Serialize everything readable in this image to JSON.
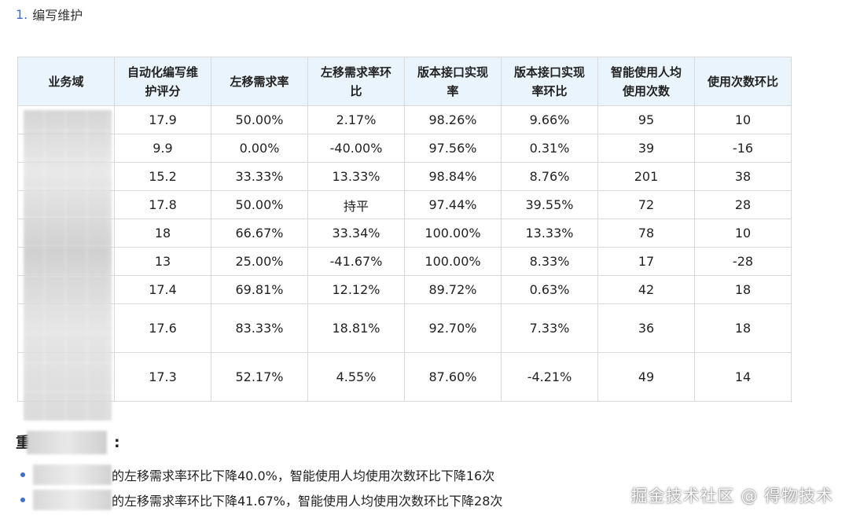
{
  "section": {
    "number": "1.",
    "title": "编写维护"
  },
  "table": {
    "headers": [
      "业务域",
      "自动化编写维护评分",
      "左移需求率",
      "左移需求率环比",
      "版本接口实现率",
      "版本接口实现率环比",
      "智能使用人均使用次数",
      "使用次数环比"
    ],
    "header_lines": [
      [
        "业务域"
      ],
      [
        "自动化编写维",
        "护评分"
      ],
      [
        "左移需求率"
      ],
      [
        "左移需求率环",
        "比"
      ],
      [
        "版本接口实现",
        "率"
      ],
      [
        "版本接口实现",
        "率环比"
      ],
      [
        "智能使用人均",
        "使用次数"
      ],
      [
        "使用次数环比"
      ]
    ],
    "rows": [
      {
        "domain": "",
        "score": "17.9",
        "shift_rate": "50.00%",
        "shift_mom": "2.17%",
        "shift_mom_sign": "pos",
        "impl_rate": "98.26%",
        "impl_mom": "9.66%",
        "impl_mom_sign": "pos",
        "avg_use": "95",
        "use_mom": "10",
        "use_mom_sign": "pos"
      },
      {
        "domain": "",
        "score": "9.9",
        "shift_rate": "0.00%",
        "shift_mom": "-40.00%",
        "shift_mom_sign": "neg",
        "impl_rate": "97.56%",
        "impl_mom": "0.31%",
        "impl_mom_sign": "pos",
        "avg_use": "39",
        "use_mom": "-16",
        "use_mom_sign": "neg"
      },
      {
        "domain": "",
        "score": "15.2",
        "shift_rate": "33.33%",
        "shift_mom": "13.33%",
        "shift_mom_sign": "pos",
        "impl_rate": "98.84%",
        "impl_mom": "8.76%",
        "impl_mom_sign": "pos",
        "avg_use": "201",
        "use_mom": "38",
        "use_mom_sign": "pos"
      },
      {
        "domain": "",
        "score": "17.8",
        "shift_rate": "50.00%",
        "shift_mom": "持平",
        "shift_mom_sign": "flat",
        "impl_rate": "97.44%",
        "impl_mom": "39.55%",
        "impl_mom_sign": "pos",
        "avg_use": "72",
        "use_mom": "28",
        "use_mom_sign": "pos"
      },
      {
        "domain": "",
        "score": "18",
        "shift_rate": "66.67%",
        "shift_mom": "33.34%",
        "shift_mom_sign": "pos",
        "impl_rate": "100.00%",
        "impl_mom": "13.33%",
        "impl_mom_sign": "pos",
        "avg_use": "78",
        "use_mom": "10",
        "use_mom_sign": "pos"
      },
      {
        "domain": "",
        "score": "13",
        "shift_rate": "25.00%",
        "shift_mom": "-41.67%",
        "shift_mom_sign": "neg",
        "impl_rate": "100.00%",
        "impl_mom": "8.33%",
        "impl_mom_sign": "pos",
        "avg_use": "17",
        "use_mom": "-28",
        "use_mom_sign": "neg"
      },
      {
        "domain": "",
        "score": "17.4",
        "shift_rate": "69.81%",
        "shift_mom": "12.12%",
        "shift_mom_sign": "pos",
        "impl_rate": "89.72%",
        "impl_mom": "0.63%",
        "impl_mom_sign": "pos",
        "avg_use": "42",
        "use_mom": "18",
        "use_mom_sign": "pos"
      },
      {
        "domain": "",
        "score": "17.6",
        "shift_rate": "83.33%",
        "shift_mom": "18.81%",
        "shift_mom_sign": "pos",
        "impl_rate": "92.70%",
        "impl_mom": "7.33%",
        "impl_mom_sign": "pos",
        "avg_use": "36",
        "use_mom": "18",
        "use_mom_sign": "pos",
        "tall": true
      },
      {
        "domain": "",
        "score": "17.3",
        "shift_rate": "52.17%",
        "shift_mom": "4.55%",
        "shift_mom_sign": "pos",
        "impl_rate": "87.60%",
        "impl_mom": "-4.21%",
        "impl_mom_sign": "neg",
        "avg_use": "49",
        "use_mom": "14",
        "use_mom_sign": "pos",
        "tall": true
      }
    ]
  },
  "summary": {
    "heading_visible": "重",
    "heading_suffix": ":",
    "bullets": [
      "的左移需求率环比下降40.0%，智能使用人均使用次数环比下降16次",
      "的左移需求率环比下降41.67%，智能使用人均使用次数环比下降28次"
    ]
  },
  "watermark": "掘金技术社区 @ 得物技术",
  "colors": {
    "positive": "#1aa358",
    "negative": "#e53935",
    "header_bg": "#eaf4fc",
    "accent": "#3d6fd1"
  }
}
